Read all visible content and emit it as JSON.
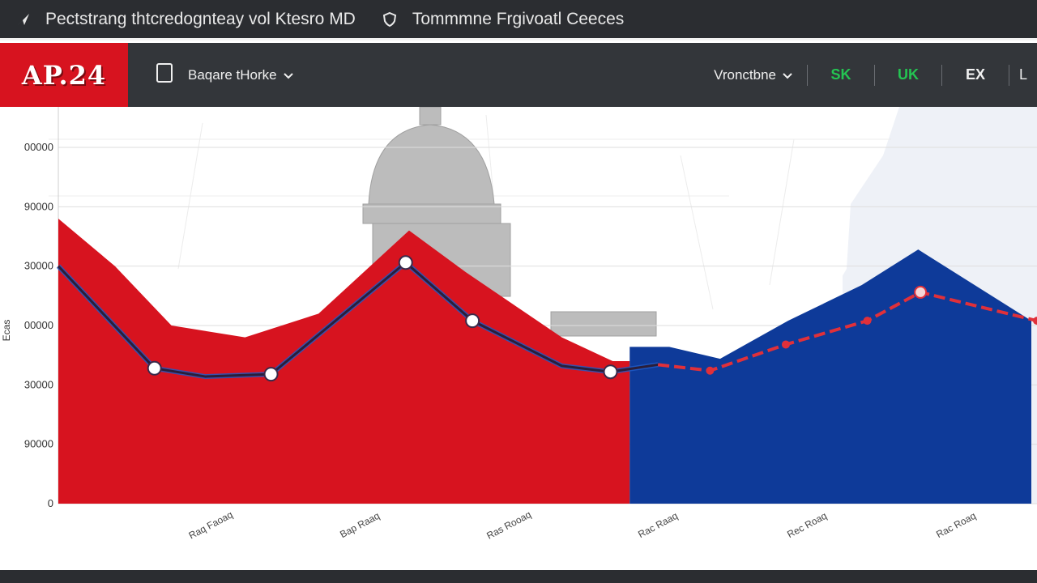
{
  "window": {
    "title": "Pectstrang thtcredognteay vol Ktesro MD",
    "subtitle": "Tommmne Frgivoatl Ceeces",
    "title_icon": "send-icon",
    "subtitle_icon": "shield-icon"
  },
  "nav": {
    "brand": "AP.24",
    "menu_label": "Baqare tHorke",
    "menu_icon": "document-icon",
    "dropdown_label": "Vronctbne",
    "tabs": [
      {
        "label": "SK",
        "color": "#24c452"
      },
      {
        "label": "UK",
        "color": "#24c452"
      },
      {
        "label": "EX",
        "color": "#f0f0f0"
      }
    ],
    "last_label": "L"
  },
  "chart_data": {
    "type": "area",
    "ylabel": "Ecas",
    "y_ticks": [
      "00000",
      "90000",
      "30000",
      "00000",
      "30000",
      "90000",
      "0"
    ],
    "x_ticks": [
      "Raq Faoaq",
      "Bap Raaq",
      "Ras Rooaq",
      "Rac Raaq",
      "Rec Roaq",
      "Rac Roaq"
    ],
    "ylim": [
      0,
      6
    ],
    "grid": true,
    "colors": {
      "red": "#d7131f",
      "blue": "#0e3a99",
      "line_dark": "#2a1e3a",
      "line_blue": "#1e5bc6",
      "line_red": "#e0303a"
    },
    "red_area": [
      {
        "x": 0,
        "y": 4.8
      },
      {
        "x": 0.5,
        "y": 4.0
      },
      {
        "x": 1.0,
        "y": 3.0
      },
      {
        "x": 1.65,
        "y": 2.8
      },
      {
        "x": 2.3,
        "y": 3.2
      },
      {
        "x": 3.1,
        "y": 4.6
      },
      {
        "x": 3.6,
        "y": 3.9
      },
      {
        "x": 4.45,
        "y": 2.8
      },
      {
        "x": 4.9,
        "y": 2.4
      },
      {
        "x": 5.05,
        "y": 2.4
      }
    ],
    "blue_area": [
      {
        "x": 5.05,
        "y": 2.64
      },
      {
        "x": 5.4,
        "y": 2.64
      },
      {
        "x": 5.85,
        "y": 2.44
      },
      {
        "x": 6.45,
        "y": 3.08
      },
      {
        "x": 7.1,
        "y": 3.68
      },
      {
        "x": 7.6,
        "y": 4.28
      },
      {
        "x": 8.6,
        "y": 3.08
      }
    ],
    "series": [
      {
        "style": "line",
        "points": [
          {
            "x": 0,
            "y": 4.0
          },
          {
            "x": 0.85,
            "y": 2.28
          },
          {
            "x": 1.3,
            "y": 2.14
          },
          {
            "x": 1.88,
            "y": 2.18
          },
          {
            "x": 3.07,
            "y": 4.06
          },
          {
            "x": 3.66,
            "y": 3.08
          },
          {
            "x": 4.45,
            "y": 2.32
          },
          {
            "x": 4.88,
            "y": 2.22
          },
          {
            "x": 5.3,
            "y": 2.34
          }
        ],
        "markers": [
          1,
          3,
          4,
          5,
          7
        ]
      },
      {
        "style": "dashed",
        "points": [
          {
            "x": 5.3,
            "y": 2.34
          },
          {
            "x": 5.76,
            "y": 2.24
          },
          {
            "x": 6.43,
            "y": 2.68
          },
          {
            "x": 7.15,
            "y": 3.08
          },
          {
            "x": 7.62,
            "y": 3.56
          },
          {
            "x": 8.65,
            "y": 3.08
          }
        ],
        "markers": [
          0,
          4
        ]
      }
    ]
  }
}
